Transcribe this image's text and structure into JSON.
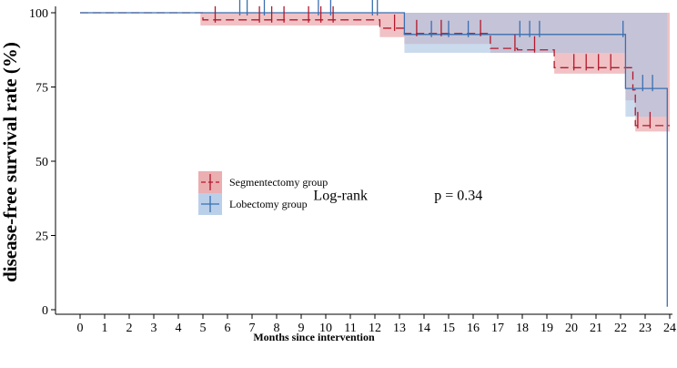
{
  "chart_data": {
    "type": "line",
    "subtype": "kaplan-meier step curve with confidence bands and censor marks",
    "xlabel": "Months since intervention",
    "ylabel": "disease-free survival rate (%)",
    "xlim": [
      -0.6,
      24.1
    ],
    "ylim": [
      -2,
      100
    ],
    "x_ticks": [
      0,
      1,
      2,
      3,
      4,
      5,
      6,
      7,
      8,
      9,
      10,
      11,
      12,
      13,
      14,
      15,
      16,
      17,
      18,
      19,
      20,
      21,
      22,
      23,
      24
    ],
    "y_ticks": [
      0,
      25,
      50,
      75,
      100
    ],
    "x_tick_labels": [
      "0",
      "1",
      "2",
      "3",
      "4",
      "5",
      "6",
      "7",
      "8",
      "9",
      "10",
      "11",
      "12",
      "13",
      "14",
      "15",
      "16",
      "17",
      "18",
      "19",
      "20",
      "21",
      "22",
      "23",
      "24"
    ],
    "y_tick_labels": [
      "0",
      "25",
      "50",
      "75",
      "100"
    ],
    "legend_position": "left-center",
    "annotations": [
      {
        "text": "Log-rank",
        "x": 10.6,
        "y": 37
      },
      {
        "text": "p = 0.34",
        "x": 15.4,
        "y": 37
      }
    ],
    "series": [
      {
        "name": "Segmentectomy group",
        "color": "#b2182b",
        "band_color": "#e69a9e",
        "line_style": "dashed",
        "steps": [
          [
            0,
            100
          ],
          [
            5,
            97.6
          ],
          [
            12.2,
            94.8
          ],
          [
            13.2,
            93
          ],
          [
            16.7,
            88
          ],
          [
            17.8,
            87.5
          ],
          [
            19.3,
            81.5
          ],
          [
            22.5,
            74
          ],
          [
            22.6,
            62
          ],
          [
            24,
            62
          ]
        ],
        "ci_lower": [
          [
            4.9,
            95.7
          ],
          [
            12.2,
            91.8
          ],
          [
            13.2,
            89.5
          ],
          [
            16.7,
            86.5
          ],
          [
            19.3,
            79.5
          ],
          [
            22.2,
            70.5
          ],
          [
            22.6,
            60
          ],
          [
            24,
            60
          ]
        ],
        "ci_upper": [
          [
            4.9,
            100
          ],
          [
            24,
            100
          ]
        ],
        "censor_times": [
          5.5,
          7.3,
          7.8,
          8.3,
          9.3,
          9.8,
          10.3,
          12.8,
          13.7,
          14.7,
          16.3,
          17.7,
          18.5,
          20.1,
          20.6,
          21.1,
          21.6,
          22.7,
          23.2
        ]
      },
      {
        "name": "Lobectomy group",
        "color": "#3a6fb0",
        "band_color": "#a9c3e3",
        "line_style": "solid",
        "steps": [
          [
            0,
            100
          ],
          [
            13.2,
            92.7
          ],
          [
            16.7,
            92.7
          ],
          [
            22.2,
            74.5
          ],
          [
            22.8,
            74.5
          ],
          [
            23.9,
            1
          ]
        ],
        "ci_lower": [
          [
            13.2,
            86.5
          ],
          [
            16.7,
            86.5
          ],
          [
            22.2,
            65
          ],
          [
            22.8,
            65
          ],
          [
            23.9,
            65
          ]
        ],
        "ci_upper": [
          [
            13.2,
            100
          ],
          [
            24,
            100
          ]
        ],
        "censor_times": [
          6.5,
          6.8,
          7.5,
          9.7,
          10.2,
          11.9,
          12.1,
          14.3,
          15,
          15.8,
          17.9,
          18.3,
          18.7,
          22.1,
          22.9,
          23.3
        ]
      }
    ]
  }
}
